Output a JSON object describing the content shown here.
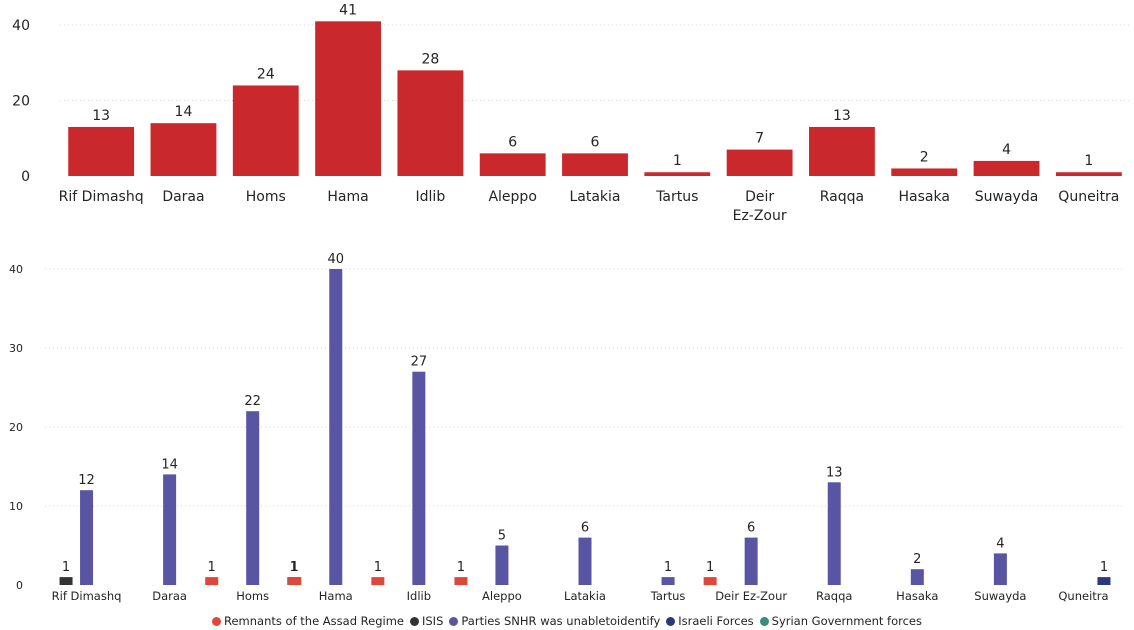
{
  "chart_data": [
    {
      "type": "bar",
      "categories": [
        "Rif Dimashq",
        "Daraa",
        "Homs",
        "Hama",
        "Idlib",
        "Aleppo",
        "Latakia",
        "Tartus",
        "Deir Ez-Zour",
        "Raqqa",
        "Hasaka",
        "Suwayda",
        "Quneitra"
      ],
      "category_labels": [
        [
          "Rif Dimashq"
        ],
        [
          "Daraa"
        ],
        [
          "Homs"
        ],
        [
          "Hama"
        ],
        [
          "Idlib"
        ],
        [
          "Aleppo"
        ],
        [
          "Latakia"
        ],
        [
          "Tartus"
        ],
        [
          "Deir",
          "Ez-Zour"
        ],
        [
          "Raqqa"
        ],
        [
          "Hasaka"
        ],
        [
          "Suwayda"
        ],
        [
          "Quneitra"
        ]
      ],
      "values": [
        13,
        14,
        24,
        41,
        28,
        6,
        6,
        1,
        7,
        13,
        2,
        4,
        1
      ],
      "color": "#C9282D",
      "ylim": [
        0,
        44
      ],
      "yticks": [
        0,
        20,
        40
      ],
      "grid": true,
      "data_labels": true
    },
    {
      "type": "bar",
      "categories": [
        "Rif Dimashq",
        "Daraa",
        "Homs",
        "Hama",
        "Idlib",
        "Aleppo",
        "Latakia",
        "Tartus",
        "Deir Ez-Zour",
        "Raqqa",
        "Hasaka",
        "Suwayda",
        "Quneitra"
      ],
      "series": [
        {
          "name": "Remnants of the Assad Regime",
          "color": "#E0473B",
          "values": [
            null,
            null,
            1,
            1,
            1,
            1,
            null,
            null,
            1,
            null,
            null,
            null,
            null
          ]
        },
        {
          "name": "ISIS",
          "color": "#333333",
          "values": [
            1,
            null,
            null,
            null,
            null,
            null,
            null,
            null,
            null,
            null,
            null,
            null,
            null
          ]
        },
        {
          "name": "Parties SNHR was unabletoidentify",
          "color": "#5A55A2",
          "values": [
            12,
            14,
            22,
            40,
            27,
            5,
            6,
            1,
            6,
            13,
            2,
            4,
            null
          ]
        },
        {
          "name": "Israeli Forces",
          "color": "#283A78",
          "values": [
            null,
            null,
            null,
            null,
            null,
            null,
            null,
            null,
            null,
            null,
            null,
            null,
            1
          ]
        },
        {
          "name": "Syrian Government forces",
          "color": "#3A8C7A",
          "values": [
            null,
            null,
            1,
            null,
            null,
            null,
            null,
            null,
            null,
            null,
            null,
            null,
            null
          ]
        }
      ],
      "ylim": [
        0,
        42
      ],
      "yticks": [
        0,
        10,
        20,
        30,
        40
      ],
      "grid": true,
      "data_labels": true,
      "legend": "bottom-center"
    }
  ]
}
